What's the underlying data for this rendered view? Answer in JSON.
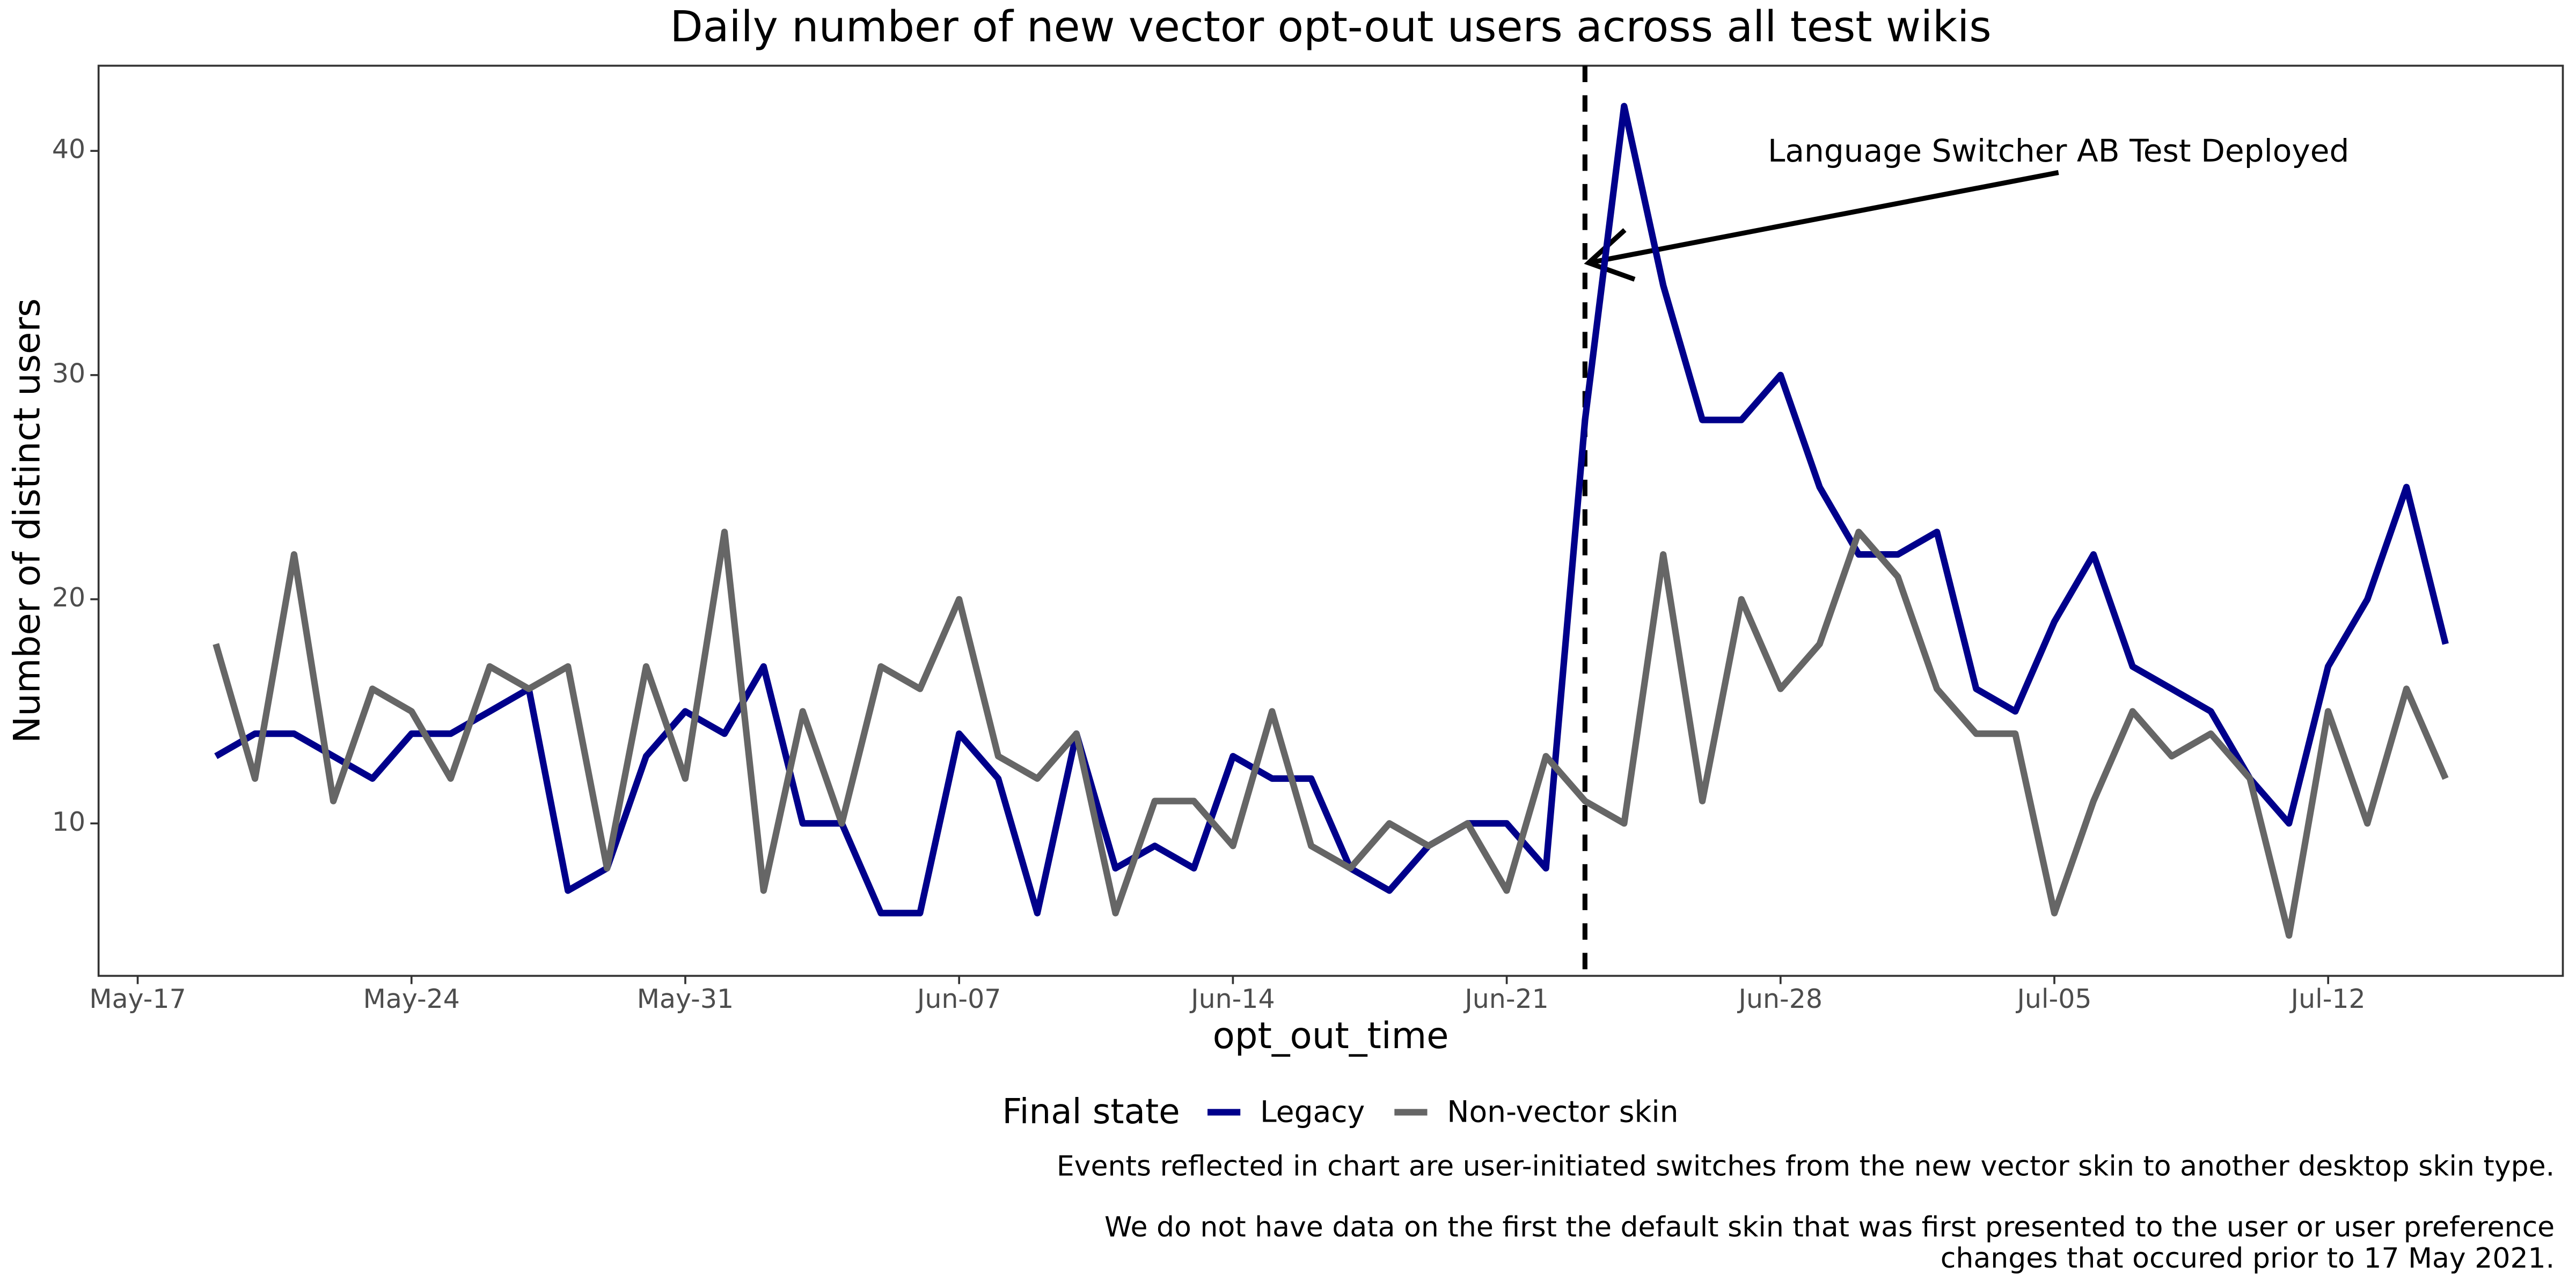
{
  "chart_data": {
    "type": "line",
    "title": "Daily number of new vector opt-out users across all test wikis",
    "x_label": "opt_out_time",
    "y_label": "Number of distinct users",
    "x": [
      "May-19",
      "May-20",
      "May-21",
      "May-22",
      "May-23",
      "May-24",
      "May-25",
      "May-26",
      "May-27",
      "May-28",
      "May-29",
      "May-30",
      "May-31",
      "Jun-01",
      "Jun-02",
      "Jun-03",
      "Jun-04",
      "Jun-05",
      "Jun-06",
      "Jun-07",
      "Jun-08",
      "Jun-09",
      "Jun-10",
      "Jun-11",
      "Jun-12",
      "Jun-13",
      "Jun-14",
      "Jun-15",
      "Jun-16",
      "Jun-17",
      "Jun-18",
      "Jun-19",
      "Jun-20",
      "Jun-21",
      "Jun-22",
      "Jun-23",
      "Jun-24",
      "Jun-25",
      "Jun-26",
      "Jun-27",
      "Jun-28",
      "Jun-29",
      "Jun-30",
      "Jul-01",
      "Jul-02",
      "Jul-03",
      "Jul-04",
      "Jul-05",
      "Jul-06",
      "Jul-07",
      "Jul-08",
      "Jul-09",
      "Jul-10",
      "Jul-11",
      "Jul-12",
      "Jul-13",
      "Jul-14",
      "Jul-15"
    ],
    "series": [
      {
        "name": "Legacy",
        "color": "#00008b",
        "values": [
          13,
          14,
          14,
          13,
          12,
          14,
          14,
          15,
          16,
          7,
          8,
          13,
          15,
          14,
          17,
          10,
          10,
          6,
          6,
          14,
          12,
          6,
          14,
          8,
          9,
          8,
          13,
          12,
          12,
          8,
          7,
          9,
          10,
          10,
          8,
          28,
          42,
          34,
          28,
          28,
          30,
          25,
          22,
          22,
          23,
          16,
          15,
          19,
          22,
          17,
          16,
          15,
          12,
          10,
          17,
          20,
          25,
          18
        ]
      },
      {
        "name": "Non-vector skin",
        "color": "#666666",
        "values": [
          18,
          12,
          22,
          11,
          16,
          15,
          12,
          17,
          16,
          17,
          8,
          17,
          12,
          23,
          7,
          15,
          10,
          17,
          16,
          20,
          13,
          12,
          14,
          6,
          11,
          11,
          9,
          15,
          9,
          8,
          10,
          9,
          10,
          7,
          13,
          11,
          10,
          22,
          11,
          20,
          16,
          18,
          23,
          21,
          16,
          14,
          14,
          6,
          11,
          15,
          13,
          14,
          12,
          5,
          15,
          10,
          16,
          12
        ]
      }
    ],
    "xlim": [
      "May-16",
      "Jul-18"
    ],
    "xticks": [
      "May-17",
      "May-24",
      "May-31",
      "Jun-07",
      "Jun-14",
      "Jun-21",
      "Jun-28",
      "Jul-05",
      "Jul-12"
    ],
    "ylim": [
      3.2,
      43.8
    ],
    "yticks": [
      10,
      20,
      30,
      40
    ],
    "legend_title": "Final state",
    "legend_position": "bottom",
    "annotation": {
      "text": "Language Switcher AB Test Deployed",
      "x": "Jun-23"
    },
    "caption": [
      "Events reflected in chart are user-initiated switches from the new vector skin to another desktop skin type.",
      "We do not have data on the first the default skin that was first presented to the user or user preference",
      "changes that occured prior to 17 May 2021."
    ]
  }
}
